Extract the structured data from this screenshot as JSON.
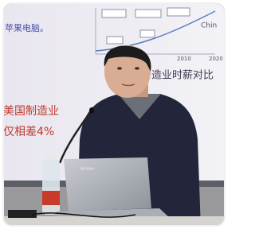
{
  "screen_texts": {
    "top_left": "苹果电脑。",
    "right": "造业时薪对比",
    "left_line1": "美国制造业",
    "left_line2": "仅相差4%",
    "corner": "Chin"
  },
  "chart_labels": [
    "2010",
    "2020"
  ],
  "laptop_brand": "Lenovo"
}
